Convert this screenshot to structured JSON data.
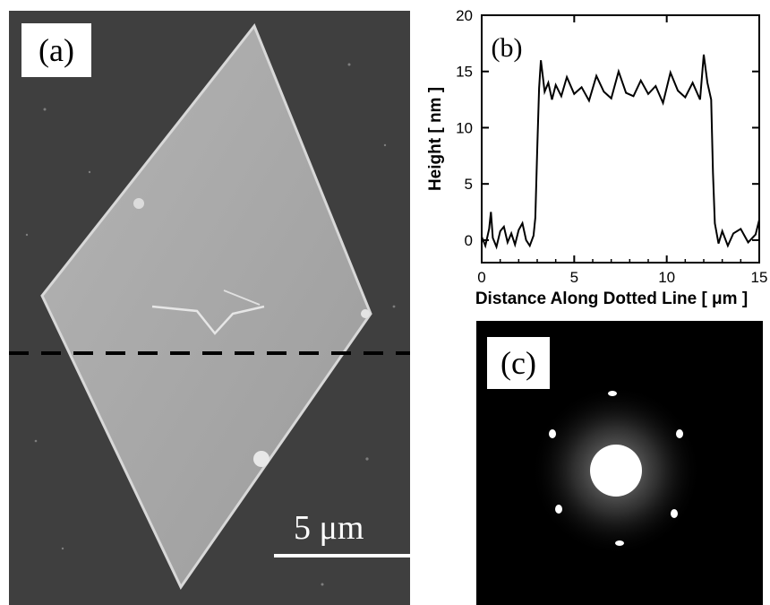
{
  "panel_a": {
    "label": "(a)",
    "scale_bar_text": "5 μm"
  },
  "panel_c": {
    "label": "(c)"
  },
  "chart_data": {
    "type": "line",
    "panel_label": "(b)",
    "xlabel": "Distance Along Dotted Line [ μm ]",
    "ylabel": "Height [ nm ]",
    "xlim": [
      0,
      15
    ],
    "ylim": [
      -2,
      20
    ],
    "xticks": [
      0,
      5,
      10,
      15
    ],
    "yticks": [
      0,
      5,
      10,
      15,
      20
    ],
    "series": [
      {
        "x": [
          0,
          0.2,
          0.4,
          0.5,
          0.6,
          0.8,
          1.0,
          1.2,
          1.4,
          1.6,
          1.8,
          2.0,
          2.2,
          2.4,
          2.6,
          2.8,
          2.9,
          3.0,
          3.1,
          3.2,
          3.4,
          3.6,
          3.8,
          4.0,
          4.3,
          4.6,
          5.0,
          5.4,
          5.8,
          6.2,
          6.6,
          7.0,
          7.4,
          7.8,
          8.2,
          8.6,
          9.0,
          9.4,
          9.8,
          10.2,
          10.6,
          11.0,
          11.4,
          11.8,
          12.0,
          12.2,
          12.4,
          12.5,
          12.6,
          12.8,
          13.0,
          13.3,
          13.6,
          14.0,
          14.4,
          14.8,
          15.0
        ],
        "y": [
          0.3,
          -0.5,
          1.0,
          2.5,
          0.2,
          -0.6,
          0.8,
          1.2,
          -0.2,
          0.6,
          -0.4,
          0.9,
          1.5,
          0.0,
          -0.5,
          0.4,
          2.0,
          8.0,
          13.5,
          16.0,
          13.2,
          14.0,
          12.5,
          13.8,
          12.8,
          14.5,
          13.0,
          13.6,
          12.4,
          14.6,
          13.2,
          12.6,
          15.0,
          13.1,
          12.8,
          14.2,
          13.0,
          13.7,
          12.2,
          14.9,
          13.3,
          12.7,
          14.0,
          12.5,
          16.5,
          14.0,
          12.5,
          6.0,
          1.5,
          -0.3,
          0.8,
          -0.5,
          0.6,
          1.0,
          -0.2,
          0.5,
          1.8
        ]
      }
    ]
  }
}
